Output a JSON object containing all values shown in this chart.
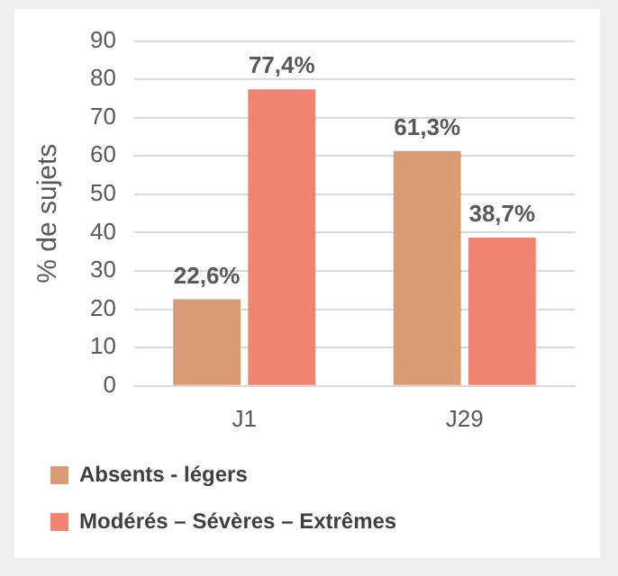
{
  "chart_data": {
    "type": "bar",
    "ylabel": "% de sujets",
    "categories": [
      "J1",
      "J29"
    ],
    "series": [
      {
        "name": "Absents - légers",
        "color": "#d99b73",
        "values": [
          22.6,
          61.3
        ],
        "value_labels": [
          "22,6%",
          "61,3%"
        ]
      },
      {
        "name": "Modérés – Sévères – Extrêmes",
        "color": "#f08470",
        "values": [
          77.4,
          38.7
        ],
        "value_labels": [
          "77,4%",
          "38,7%"
        ]
      }
    ],
    "ylim": [
      0,
      90
    ],
    "yticks": [
      0,
      10,
      20,
      30,
      40,
      50,
      60,
      70,
      80,
      90
    ],
    "grid": "y",
    "legend": "bottom left"
  }
}
